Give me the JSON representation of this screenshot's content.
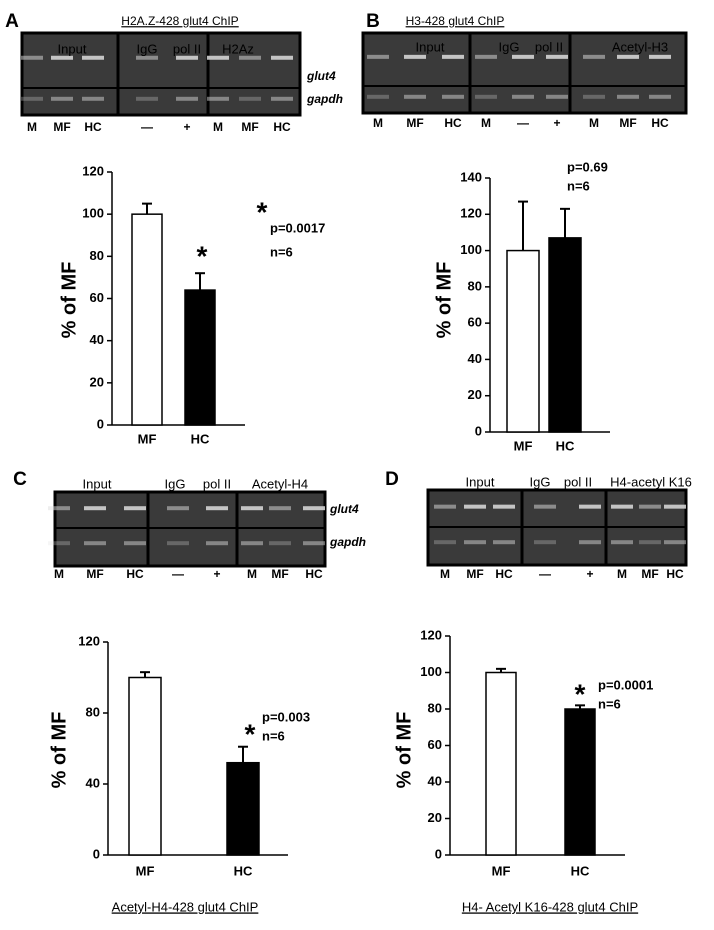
{
  "panels": [
    {
      "letter": "A",
      "gel_title": "H2A.Z-428 glut4 ChIP",
      "groups": [
        "Input",
        "IgG",
        "pol II",
        "H2Az"
      ],
      "rows": [
        "glut4",
        "gapdh"
      ],
      "lanes": [
        "M",
        "MF",
        "HC",
        "—",
        "+",
        "M",
        "MF",
        "HC"
      ]
    },
    {
      "letter": "B",
      "gel_title": "H3-428 glut4 ChIP",
      "groups": [
        "Input",
        "IgG",
        "pol II",
        "Acetyl-H3"
      ],
      "lanes": [
        "M",
        "MF",
        "HC",
        "M",
        "—",
        "+",
        "M",
        "MF",
        "HC"
      ]
    },
    {
      "letter": "C",
      "groups": [
        "Input",
        "IgG",
        "pol II",
        "Acetyl-H4"
      ],
      "rows": [
        "glut4",
        "gapdh"
      ],
      "lanes": [
        "M",
        "MF",
        "HC",
        "—",
        "+",
        "M",
        "MF",
        "HC"
      ],
      "caption": "Acetyl-H4-428 glut4 ChIP"
    },
    {
      "letter": "D",
      "groups": [
        "Input",
        "IgG",
        "pol II",
        "H4-acetyl K16"
      ],
      "lanes": [
        "M",
        "MF",
        "HC",
        "—",
        "+",
        "M",
        "MF",
        "HC"
      ],
      "caption": "H4- Acetyl K16-428 glut4 ChIP"
    }
  ],
  "chart_data": [
    {
      "type": "bar",
      "ylabel": "% of MF",
      "categories": [
        "MF",
        "HC"
      ],
      "values": [
        100,
        64
      ],
      "errors": [
        5,
        8
      ],
      "colors": [
        "#ffffff",
        "#000000"
      ],
      "ylim": [
        0,
        120
      ],
      "yticks": [
        0,
        20,
        40,
        60,
        80,
        100,
        120
      ],
      "bar_annotation": "*",
      "annotations": [
        "*",
        "p=0.0017",
        "n=6"
      ]
    },
    {
      "type": "bar",
      "ylabel": "% of MF",
      "categories": [
        "MF",
        "HC"
      ],
      "values": [
        100,
        107
      ],
      "errors": [
        27,
        16
      ],
      "colors": [
        "#ffffff",
        "#000000"
      ],
      "ylim": [
        0,
        140
      ],
      "yticks": [
        0,
        20,
        40,
        60,
        80,
        100,
        120,
        140
      ],
      "annotations": [
        "p=0.69",
        "n=6"
      ]
    },
    {
      "type": "bar",
      "ylabel": "% of MF",
      "categories": [
        "MF",
        "HC"
      ],
      "values": [
        100,
        52
      ],
      "errors": [
        3,
        9
      ],
      "colors": [
        "#ffffff",
        "#000000"
      ],
      "ylim": [
        0,
        120
      ],
      "yticks": [
        0,
        40,
        80,
        120
      ],
      "annotations": [
        "*",
        "p=0.003",
        "n=6"
      ]
    },
    {
      "type": "bar",
      "ylabel": "% of MF",
      "categories": [
        "MF",
        "HC"
      ],
      "values": [
        100,
        80
      ],
      "errors": [
        2,
        2
      ],
      "colors": [
        "#ffffff",
        "#000000"
      ],
      "ylim": [
        0,
        120
      ],
      "yticks": [
        0,
        20,
        40,
        60,
        80,
        100,
        120
      ],
      "annotations": [
        "*",
        "p=0.0001",
        "n=6"
      ]
    }
  ]
}
